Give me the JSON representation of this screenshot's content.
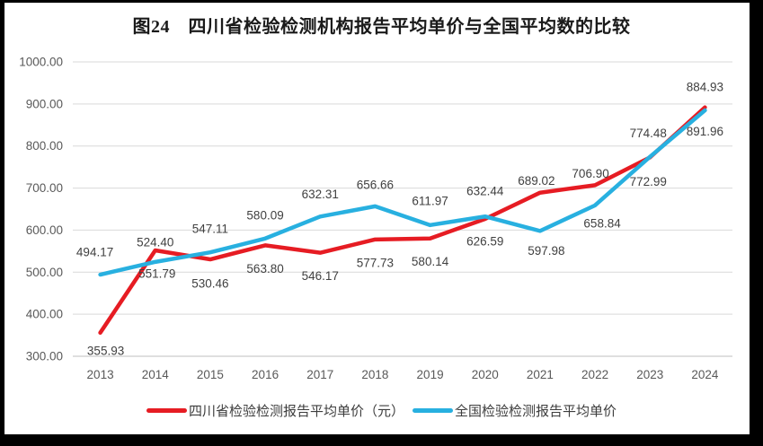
{
  "chart_data": {
    "type": "line",
    "title": "图24　四川省检验检测机构报告平均单价与全国平均数的比较",
    "x": [
      "2013",
      "2014",
      "2015",
      "2016",
      "2017",
      "2018",
      "2019",
      "2020",
      "2021",
      "2022",
      "2023",
      "2024"
    ],
    "series": [
      {
        "name": "四川省检验检测报告平均单价（元）",
        "color": "#e61c23",
        "values": [
          355.93,
          551.79,
          530.46,
          563.8,
          546.17,
          577.73,
          580.14,
          626.59,
          689.02,
          706.9,
          772.99,
          891.96
        ],
        "label_dy": [
          20,
          26,
          27,
          26,
          26,
          26,
          26,
          25,
          -13,
          -13,
          27,
          27
        ],
        "label_dx": [
          6,
          2,
          0,
          0,
          0,
          0,
          0,
          0,
          -4,
          -5,
          -2,
          0
        ]
      },
      {
        "name": "全国检验检测报告平均单价",
        "color": "#28b0e0",
        "values": [
          494.17,
          524.4,
          547.11,
          580.09,
          632.31,
          656.66,
          611.97,
          632.44,
          597.98,
          658.84,
          774.48,
          884.93
        ],
        "label_dy": [
          -25,
          -22,
          -26,
          -26,
          -25,
          -24,
          -27,
          -28,
          22,
          20,
          -26,
          -26
        ],
        "label_dx": [
          -6,
          0,
          0,
          0,
          0,
          0,
          0,
          0,
          7,
          8,
          -2,
          0
        ]
      }
    ],
    "ylim": [
      300,
      1000
    ],
    "yticks": [
      "1000.00",
      "900.00",
      "800.00",
      "700.00",
      "600.00",
      "500.00",
      "400.00",
      "300.00"
    ],
    "grid": true,
    "legend_position": "bottom",
    "xlabel": "",
    "ylabel": ""
  },
  "colors": {
    "frame": "#000000",
    "background": "#ffffff",
    "gridline": "#d9d9d9",
    "axis_line": "#bfbfbf",
    "tick_label": "#595959",
    "data_label": "#404040",
    "title_text": "#1a1a1a",
    "legend_text": "#3d3d3d"
  }
}
